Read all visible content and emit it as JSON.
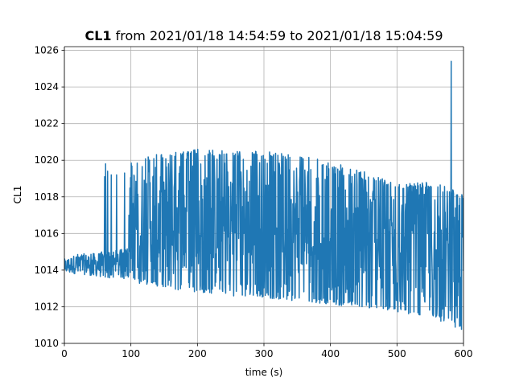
{
  "chart_data": {
    "type": "line",
    "title_bold": "CL1",
    "title_rest": " from 2021/01/18 14:54:59 to 2021/01/18 15:04:59",
    "xlabel": "time (s)",
    "ylabel": "CL1",
    "xlim": [
      0,
      600
    ],
    "ylim": [
      1010,
      1026.2
    ],
    "xticks": [
      0,
      100,
      200,
      300,
      400,
      500,
      600
    ],
    "yticks": [
      1010,
      1012,
      1014,
      1016,
      1018,
      1020,
      1022,
      1024,
      1026
    ],
    "grid": true,
    "sample_interval_s": 0.5,
    "series": [
      {
        "color": "#1f77b4",
        "envelope": [
          {
            "t": 0,
            "low": 1013.8,
            "high": 1014.6
          },
          {
            "t": 20,
            "low": 1013.8,
            "high": 1014.9
          },
          {
            "t": 40,
            "low": 1013.7,
            "high": 1014.9
          },
          {
            "t": 55,
            "low": 1013.6,
            "high": 1015.0
          },
          {
            "t": 95,
            "low": 1013.5,
            "high": 1015.2
          },
          {
            "t": 100,
            "low": 1013.4,
            "high": 1019.9
          },
          {
            "t": 110,
            "low": 1013.3,
            "high": 1020.1
          },
          {
            "t": 150,
            "low": 1013.0,
            "high": 1020.4
          },
          {
            "t": 200,
            "low": 1012.8,
            "high": 1020.6
          },
          {
            "t": 250,
            "low": 1012.6,
            "high": 1020.5
          },
          {
            "t": 300,
            "low": 1012.5,
            "high": 1020.5
          },
          {
            "t": 350,
            "low": 1012.3,
            "high": 1020.3
          },
          {
            "t": 400,
            "low": 1012.1,
            "high": 1019.9
          },
          {
            "t": 450,
            "low": 1011.9,
            "high": 1019.4
          },
          {
            "t": 500,
            "low": 1011.7,
            "high": 1018.7
          },
          {
            "t": 550,
            "low": 1011.4,
            "high": 1018.8
          },
          {
            "t": 580,
            "low": 1011.0,
            "high": 1018.5
          },
          {
            "t": 600,
            "low": 1010.6,
            "high": 1018.1
          }
        ],
        "spikes": [
          {
            "t": 60.5,
            "value": 1019.1
          },
          {
            "t": 62.0,
            "value": 1019.8
          },
          {
            "t": 65.0,
            "value": 1019.4
          },
          {
            "t": 70.5,
            "value": 1019.2
          },
          {
            "t": 78.5,
            "value": 1019.2
          },
          {
            "t": 90.5,
            "value": 1019.3
          },
          {
            "t": 581.5,
            "value": 1025.4
          }
        ]
      }
    ]
  }
}
